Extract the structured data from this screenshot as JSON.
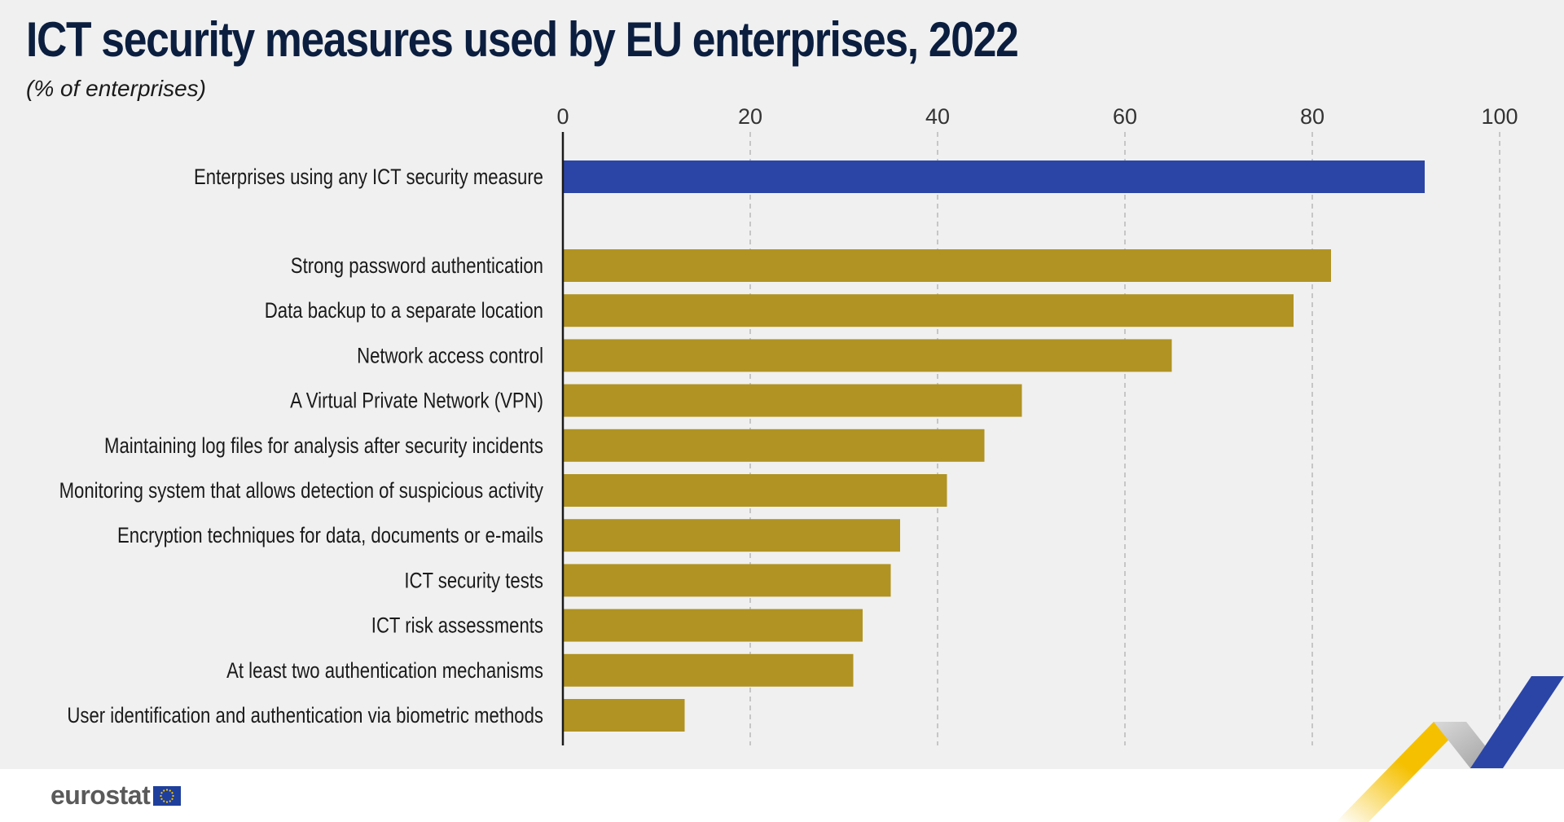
{
  "header": {
    "title": "ICT security measures used by EU enterprises, 2022",
    "subtitle": "(% of enterprises)"
  },
  "brand": {
    "logo_text": "eurostat",
    "flag_color": "#1f3f9c",
    "star_color": "#ffcc00"
  },
  "colors": {
    "highlight_bar": "#2b45a6",
    "bar": "#b09323",
    "axis": "#1a1a1a",
    "grid": "#b8b8b8",
    "deco_yellow": "#f5c000",
    "deco_grey": "#b3b3b3",
    "deco_blue": "#2b45a6"
  },
  "chart_data": {
    "type": "bar",
    "orientation": "horizontal",
    "xlim": [
      0,
      100
    ],
    "xticks": [
      0,
      20,
      40,
      60,
      80,
      100
    ],
    "grid": true,
    "categories": [
      "Enterprises using any ICT security measure",
      "Strong password authentication",
      "Data backup to a separate location",
      "Network access control",
      "A Virtual Private Network (VPN)",
      "Maintaining log files for analysis after security incidents",
      "Monitoring system that allows detection of suspicious activity",
      "Encryption techniques for data, documents or e-mails",
      "ICT security tests",
      "ICT risk assessments",
      "At least two authentication mechanisms",
      "User identification and authentication via biometric methods"
    ],
    "values": [
      92,
      82,
      78,
      65,
      49,
      45,
      41,
      36,
      35,
      32,
      31,
      13
    ],
    "highlighted": [
      0
    ]
  }
}
